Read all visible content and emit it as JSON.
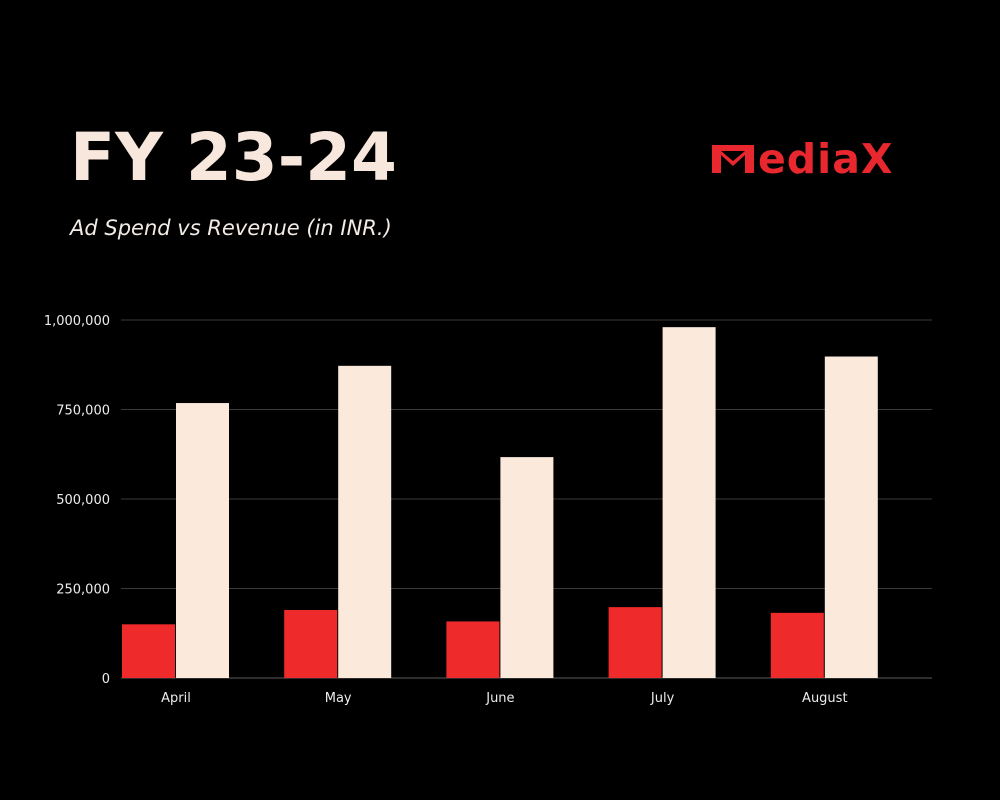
{
  "header": {
    "title": "FY 23-24",
    "subtitle": "Ad Spend vs Revenue (in INR.)",
    "logo_text": "ediaX"
  },
  "colors": {
    "background": "#000000",
    "ad_spend": "#ee2a2a",
    "revenue": "#fbe9dc",
    "brand": "#e8282e",
    "gridline": "#3a3a3a"
  },
  "chart_data": {
    "type": "bar",
    "categories": [
      "April",
      "May",
      "June",
      "July",
      "August"
    ],
    "series": [
      {
        "values": [
          150000,
          190000,
          158000,
          198000,
          182000
        ]
      },
      {
        "values": [
          768000,
          872000,
          617000,
          980000,
          898000
        ]
      }
    ],
    "y_ticks": [
      0,
      250000,
      500000,
      750000,
      1000000
    ],
    "y_tick_labels": [
      "0",
      "250,000",
      "500,000",
      "750,000",
      "1,000,000"
    ],
    "ylim": [
      0,
      1000000
    ],
    "grid": true,
    "legend": "none"
  }
}
